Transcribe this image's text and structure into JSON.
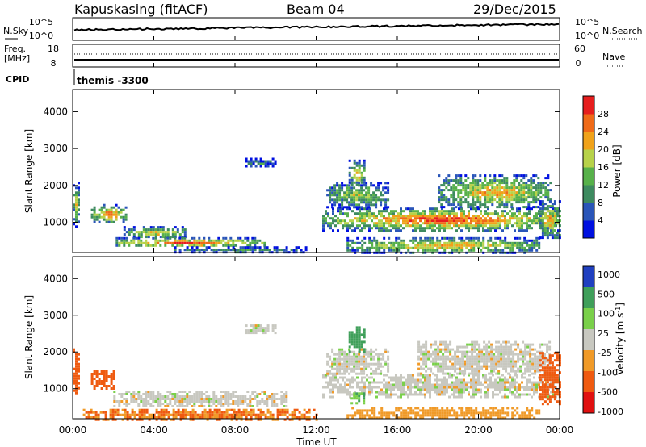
{
  "header": {
    "station": "Kapuskasing (fitACF)",
    "beam": "Beam 04",
    "date": "29/Dec/2015"
  },
  "panels": {
    "nsky_label": "N.Sky",
    "nsearch_label": "N.Search",
    "noise_ticks_left": [
      "10^5",
      "10^0"
    ],
    "noise_ticks_right": [
      "10^5",
      "10^0"
    ],
    "freq_label_top": "Freq.",
    "freq_label_bottom": "[MHz]",
    "freq_ticks": [
      "18",
      "8"
    ],
    "nave_label": "Nave",
    "nave_ticks": [
      "60",
      "0"
    ],
    "cpid_label": "CPID",
    "cpid_value": "themis -3300"
  },
  "colors": {
    "power": [
      "#0010e0",
      "#2a55b8",
      "#3d8a5f",
      "#57b14a",
      "#b7d24a",
      "#f0a21a",
      "#ef6a18",
      "#e61e1e"
    ],
    "velocity": [
      "#e01010",
      "#ef5a10",
      "#f09a28",
      "#c8c8c0",
      "#7ad04a",
      "#3f9f5a",
      "#2040c0"
    ],
    "noise_line": "#000000"
  },
  "chart_data": [
    {
      "type": "heatmap",
      "name": "power",
      "ylabel": "Slant Range [km]",
      "xlabel": "Time UT",
      "x_ticks": [
        "00:00",
        "04:00",
        "08:00",
        "12:00",
        "16:00",
        "20:00",
        "00:00"
      ],
      "xlim_hours": [
        0,
        24
      ],
      "ylim": [
        180,
        4600
      ],
      "y_ticks": [
        1000,
        2000,
        3000,
        4000
      ],
      "colorbar": {
        "label": "Power [dB]",
        "ticks": [
          4,
          8,
          12,
          16,
          20,
          24,
          28
        ],
        "range": [
          0,
          32
        ]
      },
      "bands": [
        {
          "t0": 0.0,
          "t1": 0.25,
          "r0": 900,
          "r1": 2100,
          "peak": 20
        },
        {
          "t0": 0.9,
          "t1": 2.6,
          "r0": 1000,
          "r1": 1500,
          "peak": 28
        },
        {
          "t0": 2.5,
          "t1": 5.5,
          "r0": 600,
          "r1": 900,
          "peak": 22
        },
        {
          "t0": 2.0,
          "t1": 9.5,
          "r0": 350,
          "r1": 600,
          "peak": 30
        },
        {
          "t0": 5.0,
          "t1": 11.5,
          "r0": 200,
          "r1": 350,
          "peak": 12
        },
        {
          "t0": 8.5,
          "t1": 10.0,
          "r0": 2500,
          "r1": 2750,
          "peak": 10
        },
        {
          "t0": 12.3,
          "t1": 24.0,
          "r0": 800,
          "r1": 1400,
          "peak": 30
        },
        {
          "t0": 12.5,
          "t1": 15.5,
          "r0": 1400,
          "r1": 2100,
          "peak": 18
        },
        {
          "t0": 13.6,
          "t1": 14.4,
          "r0": 2000,
          "r1": 2700,
          "peak": 22
        },
        {
          "t0": 18.0,
          "t1": 23.5,
          "r0": 1400,
          "r1": 2300,
          "peak": 24
        },
        {
          "t0": 13.5,
          "t1": 23.0,
          "r0": 200,
          "r1": 600,
          "peak": 24
        },
        {
          "t0": 23.0,
          "t1": 24.0,
          "r0": 600,
          "r1": 1600,
          "peak": 26
        }
      ]
    },
    {
      "type": "heatmap",
      "name": "velocity",
      "ylabel": "Slant Range [km]",
      "xlabel": "Time UT",
      "x_ticks": [
        "00:00",
        "04:00",
        "08:00",
        "12:00",
        "16:00",
        "20:00",
        "00:00"
      ],
      "xlim_hours": [
        0,
        24
      ],
      "ylim": [
        180,
        4600
      ],
      "y_ticks": [
        1000,
        2000,
        3000,
        4000
      ],
      "colorbar": {
        "label": "Velocity [m s-1]",
        "ticks": [
          1000,
          500,
          100,
          25,
          -25,
          -100,
          -500,
          -1000
        ]
      },
      "bands": [
        {
          "t0": 0.0,
          "t1": 0.25,
          "r0": 900,
          "r1": 2100,
          "vel": -200
        },
        {
          "t0": 0.9,
          "t1": 2.0,
          "r0": 1000,
          "r1": 1500,
          "vel": -300
        },
        {
          "t0": 2.0,
          "t1": 10.5,
          "r0": 500,
          "r1": 950,
          "vel": 0
        },
        {
          "t0": 0.5,
          "t1": 12.0,
          "r0": 180,
          "r1": 450,
          "vel": -100
        },
        {
          "t0": 8.5,
          "t1": 10.0,
          "r0": 2500,
          "r1": 2750,
          "vel": 0
        },
        {
          "t0": 12.3,
          "t1": 24.0,
          "r0": 800,
          "r1": 1400,
          "vel": 0
        },
        {
          "t0": 12.5,
          "t1": 15.5,
          "r0": 1400,
          "r1": 2100,
          "vel": 0
        },
        {
          "t0": 13.6,
          "t1": 14.4,
          "r0": 2000,
          "r1": 2700,
          "vel": 300
        },
        {
          "t0": 13.7,
          "t1": 14.3,
          "r0": 600,
          "r1": 900,
          "vel": 80
        },
        {
          "t0": 17.0,
          "t1": 23.5,
          "r0": 1400,
          "r1": 2300,
          "vel": 0
        },
        {
          "t0": 13.5,
          "t1": 23.0,
          "r0": 180,
          "r1": 500,
          "vel": -60
        },
        {
          "t0": 23.0,
          "t1": 24.0,
          "r0": 600,
          "r1": 2000,
          "vel": -200
        }
      ]
    }
  ]
}
